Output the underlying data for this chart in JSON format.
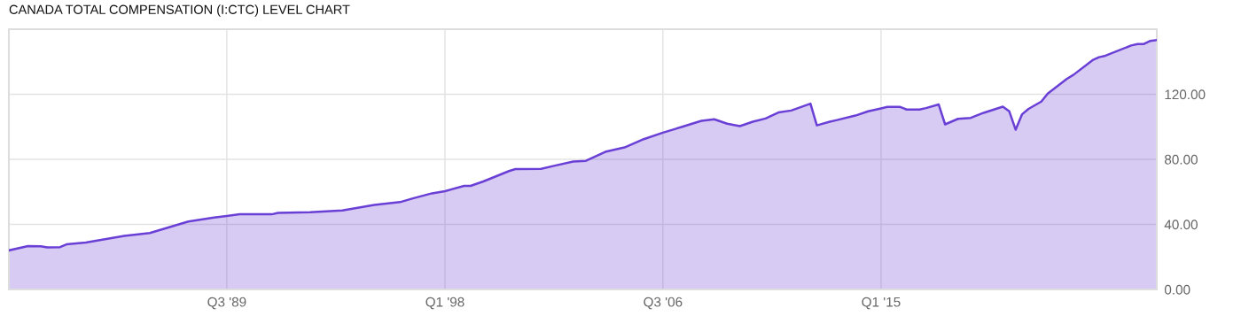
{
  "chart_data": {
    "type": "area",
    "title": "CANADA TOTAL COMPENSATION (I:CTC) LEVEL CHART",
    "x": [
      "1981-01",
      "1981-10",
      "1982-04",
      "1982-07",
      "1983-01",
      "1983-04",
      "1984-01",
      "1985-07",
      "1986-07",
      "1987-04",
      "1988-01",
      "1989-01",
      "1990-01",
      "1991-04",
      "1991-07",
      "1992-10",
      "1994-01",
      "1995-04",
      "1996-04",
      "1996-10",
      "1997-07",
      "1998-01",
      "1998-10",
      "1999-01",
      "1999-07",
      "2000-07",
      "2000-10",
      "2001-10",
      "2002-04",
      "2003-01",
      "2003-07",
      "2004-04",
      "2005-01",
      "2005-10",
      "2006-07",
      "2007-04",
      "2008-01",
      "2008-07",
      "2009-01",
      "2009-07",
      "2010-01",
      "2010-07",
      "2011-01",
      "2011-07",
      "2012-04",
      "2012-07",
      "2013-01",
      "2013-04",
      "2014-01",
      "2014-07",
      "2015-01",
      "2015-04",
      "2015-10",
      "2016-01",
      "2016-07",
      "2016-10",
      "2017-04",
      "2017-07",
      "2018-01",
      "2018-07",
      "2019-01",
      "2019-10",
      "2020-01",
      "2020-04",
      "2020-07",
      "2020-10",
      "2021-04",
      "2021-07",
      "2022-04",
      "2022-07",
      "2023-04",
      "2023-07",
      "2023-10",
      "2024-10",
      "2025-01",
      "2025-04",
      "2025-07",
      "2025-10"
    ],
    "series": [
      {
        "color": "#6a3fd6",
        "values": [
          24.0,
          26.7,
          26.5,
          25.8,
          26.0,
          27.7,
          28.8,
          32.9,
          34.7,
          38.2,
          41.8,
          44.2,
          46.2,
          46.2,
          47.1,
          47.5,
          48.6,
          52.0,
          53.7,
          56.0,
          59.1,
          60.4,
          63.7,
          63.7,
          66.4,
          72.8,
          74.0,
          74.2,
          76.0,
          78.6,
          79.1,
          84.6,
          87.3,
          92.4,
          96.4,
          100.0,
          103.7,
          104.6,
          101.9,
          100.4,
          103.1,
          105.1,
          108.8,
          110.0,
          114.2,
          100.9,
          103.1,
          104.0,
          106.9,
          109.5,
          111.3,
          112.2,
          112.2,
          110.6,
          110.6,
          111.5,
          113.7,
          101.5,
          104.9,
          105.5,
          108.6,
          112.4,
          109.5,
          98.2,
          107.7,
          111.0,
          115.5,
          120.4,
          129.5,
          131.9,
          141.0,
          142.8,
          143.7,
          150.0,
          150.9,
          150.9,
          152.8,
          153.3
        ]
      }
    ],
    "xlim": [
      "1981-01",
      "2025-10"
    ],
    "xticks": [
      {
        "value": "1989-07",
        "label": "Q3 '89"
      },
      {
        "value": "1998-01",
        "label": "Q1 '98"
      },
      {
        "value": "2006-07",
        "label": "Q3 '06"
      },
      {
        "value": "2015-01",
        "label": "Q1 '15"
      }
    ],
    "ylim": [
      0,
      160
    ],
    "yticks": [
      {
        "value": 0,
        "label": "0.00"
      },
      {
        "value": 40,
        "label": "40.00"
      },
      {
        "value": 80,
        "label": "80.00"
      },
      {
        "value": 120,
        "label": "120.00"
      }
    ],
    "grid": true
  }
}
